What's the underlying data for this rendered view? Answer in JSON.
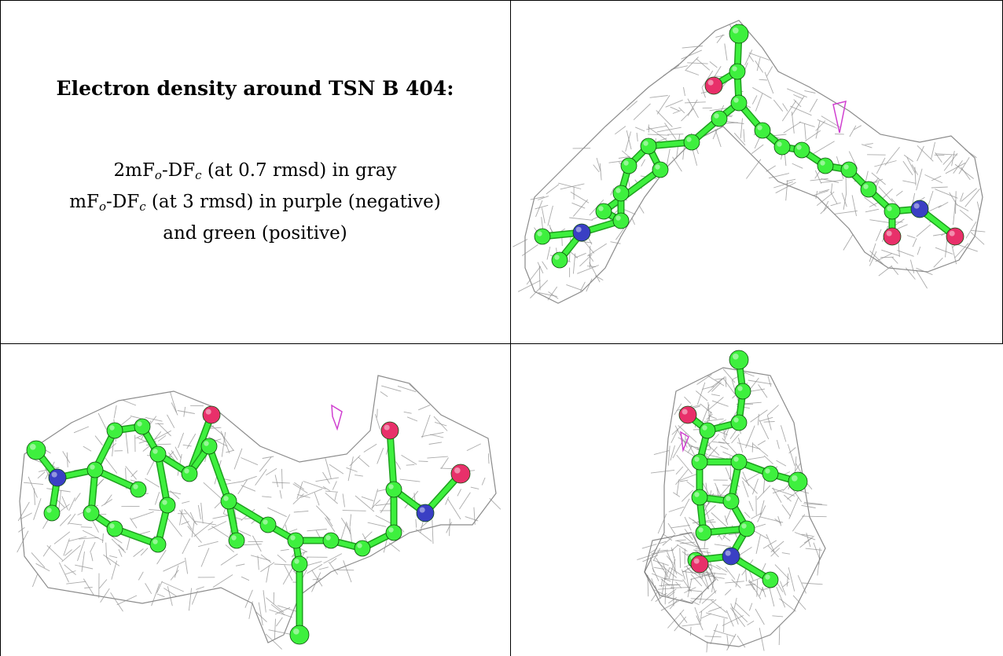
{
  "heading": "Electron density around TSN B 404:",
  "legend": {
    "line1_prefix": "2mF",
    "line1_sub1": "o",
    "line1_mid": "-DF",
    "line1_sub2": "c",
    "line1_suffix": " (at 0.7 rmsd) in gray",
    "line2_prefix": "mF",
    "line2_sub1": "o",
    "line2_mid": "-DF",
    "line2_sub2": "c",
    "line2_suffix": " (at 3 rmsd) in purple (negative)",
    "line3": "and green (positive)"
  },
  "colors": {
    "mesh": "#8f8f8f",
    "carbon": "#3ef03e",
    "oxygen": "#e8306a",
    "nitrogen": "#3a3fc4",
    "negative": "#d040d0",
    "border": "#000000"
  },
  "panels": [
    {
      "view": "top-right",
      "molecule": "TSN B 404"
    },
    {
      "view": "bottom-left",
      "molecule": "TSN B 404"
    },
    {
      "view": "bottom-right",
      "molecule": "TSN B 404"
    }
  ]
}
